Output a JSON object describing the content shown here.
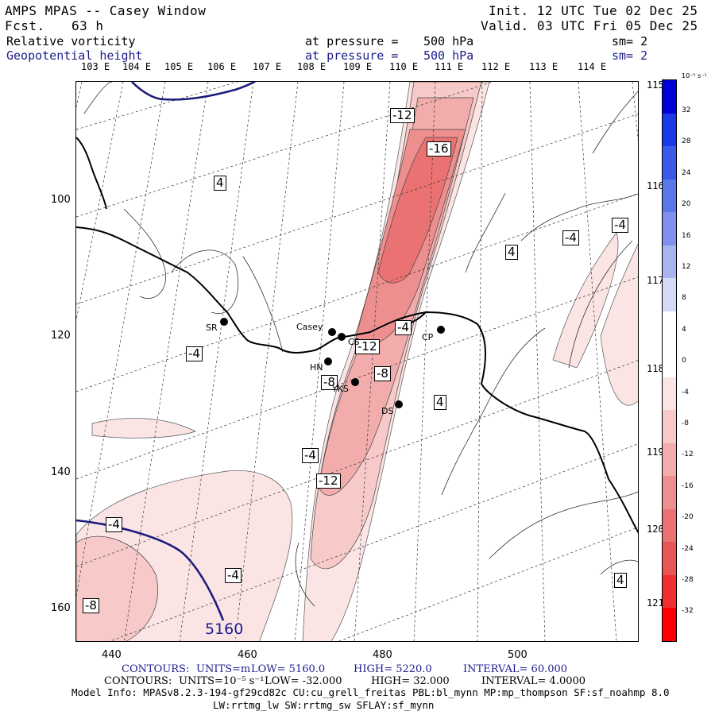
{
  "header": {
    "title": "AMPS MPAS -- Casey Window",
    "forecast_label": "Fcst.",
    "forecast_hours": "63 h",
    "init": "Init. 12 UTC Tue 02 Dec 25",
    "valid": "Valid. 03 UTC Fri 05 Dec 25",
    "field1": {
      "name": "Relative vorticity",
      "pressure_label": "at pressure =",
      "pressure": "500 hPa",
      "smooth": "sm= 2"
    },
    "field2": {
      "name": "Geopotential height",
      "pressure_label": "at pressure =",
      "pressure": "500 hPa",
      "smooth": "sm= 2"
    }
  },
  "axes": {
    "top_longitudes": [
      "103 E",
      "104 E",
      "105 E",
      "106 E",
      "107 E",
      "108 E",
      "109 E",
      "110 E",
      "111 E",
      "112 E",
      "113 E",
      "114 E"
    ],
    "right_longitudes": [
      "115 E",
      "116 E",
      "117 E",
      "118 E",
      "119 E",
      "120 E",
      "121 E"
    ],
    "y_ticks": [
      "100",
      "120",
      "140",
      "160"
    ],
    "x_ticks": [
      "440",
      "460",
      "480",
      "500"
    ]
  },
  "stations": [
    {
      "label": "Casey"
    },
    {
      "label": "CS"
    },
    {
      "label": "HN"
    },
    {
      "label": "YKS"
    },
    {
      "label": "DS"
    },
    {
      "label": "CP"
    },
    {
      "label": "SR"
    }
  ],
  "contour_labels": {
    "vort": [
      "-12",
      "-16",
      "4",
      "-4",
      "4",
      "-4",
      "-4",
      "-12",
      "-4",
      "-8",
      "-8",
      "4",
      "-4",
      "-12",
      "-4",
      "-4",
      "-8",
      "4"
    ],
    "height": "5160"
  },
  "colorbar": {
    "units": "10⁻⁵ s⁻¹",
    "labels": [
      "32",
      "28",
      "24",
      "20",
      "16",
      "12",
      "8",
      "4",
      "0",
      "-4",
      "-8",
      "-12",
      "-16",
      "-20",
      "-24",
      "-28",
      "-32"
    ],
    "colors": [
      "#0000d8",
      "#1a3ae6",
      "#3a5ae8",
      "#5a78ea",
      "#8090ec",
      "#a8b4f0",
      "#d4daf7",
      "#ffffff",
      "#ffffff",
      "#fbe4e4",
      "#f7c9c9",
      "#f2acac",
      "#ee8f8f",
      "#ea7272",
      "#e85555",
      "#f03030",
      "#ff0000"
    ]
  },
  "footer": {
    "contours1": {
      "label": "CONTOURS:",
      "units": "UNITS=m",
      "low": "LOW=  5160.0",
      "high": "HIGH=  5220.0",
      "interval": "INTERVAL=   60.000"
    },
    "contours2": {
      "label": "CONTOURS:",
      "units": "UNITS=10⁻⁵ s⁻¹",
      "low": "LOW= -32.000",
      "high": "HIGH=  32.000",
      "interval": "INTERVAL=   4.0000"
    },
    "model_info": "Model Info: MPASv8.2.3-194-gf29cd82c CU:cu_grell_freitas PBL:bl_mynn MP:mp_thompson SF:sf_noahmp 8.0",
    "model_info2": "LW:rrtmg_lw SW:rrtmg_sw SFLAY:sf_mynn"
  }
}
